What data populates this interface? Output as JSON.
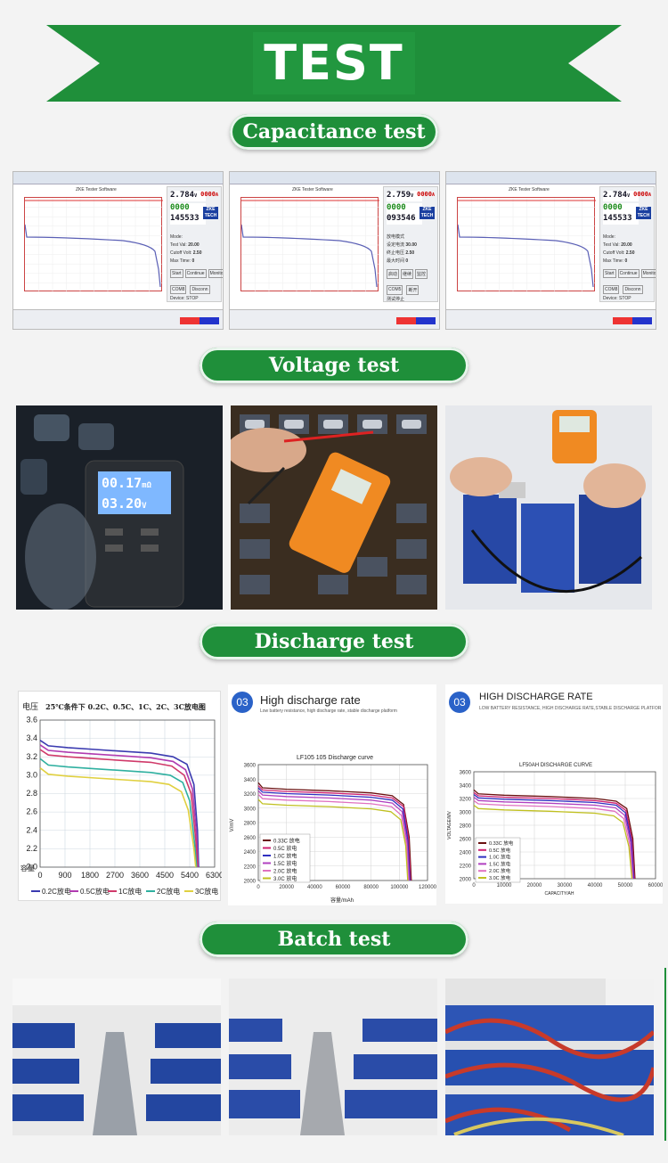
{
  "banner": {
    "title": "TEST",
    "color": "#1f8f3a"
  },
  "sections": {
    "capacitance": "Capacitance test",
    "voltage": "Voltage test",
    "discharge": "Discharge test",
    "batch": "Batch test"
  },
  "software_panels": [
    {
      "title": "ZKE Tester Software",
      "voltage": "2.784",
      "volt_unit": "V",
      "current": "0000",
      "cur_unit": "A",
      "capacity": "0000",
      "time": "145533",
      "mode_label": "Mode:",
      "test_val_label": "Test Val:",
      "test_val": "20.00",
      "cutoff_label": "Cutoff Volt:",
      "cutoff": "2.50",
      "maxtime_label": "Max Time:",
      "maxtime": "0",
      "start": "Start",
      "continue": "Continue",
      "monitor": "Monitor",
      "port": "COM8",
      "disconn": "Disconn",
      "status": "Device: STOP",
      "logo": "ZKE TECH"
    },
    {
      "title": "ZKE Tester Software",
      "voltage": "2.759",
      "volt_unit": "V",
      "current": "0000",
      "cur_unit": "A",
      "capacity": "0000",
      "time": "093546",
      "mode_label": "放电模式",
      "test_val_label": "设定电流",
      "test_val": "30.00",
      "cutoff_label": "终止电压",
      "cutoff": "2.50",
      "maxtime_label": "最大时间",
      "maxtime": "0",
      "start": "启动",
      "continue": "继续",
      "monitor": "监控",
      "port": "COM5",
      "disconn": "断开",
      "status": "测试停止",
      "logo": "ZKE TECH"
    },
    {
      "title": "ZKE Tester Software",
      "voltage": "2.784",
      "volt_unit": "V",
      "current": "0000",
      "cur_unit": "A",
      "capacity": "0000",
      "time": "145533",
      "mode_label": "Mode:",
      "test_val_label": "Test Val:",
      "test_val": "20.00",
      "cutoff_label": "Cutoff Volt:",
      "cutoff": "2.50",
      "maxtime_label": "Max Time:",
      "maxtime": "0",
      "start": "Start",
      "continue": "Continue",
      "monitor": "Monitor",
      "port": "COM8",
      "disconn": "Disconn",
      "status": "Device: STOP",
      "logo": "ZKE TECH"
    }
  ],
  "voltage_photos": {
    "meter1_line1": "00.17",
    "meter1_unit1": "mΩ",
    "meter1_line2": "03.20",
    "meter1_unit2": "V"
  },
  "discharge_cards": {
    "card2_badge": "03",
    "card2_title": "High discharge rate",
    "card2_subtitle": "Low battery resistance, high discharge rate, stable discharge platform",
    "card3_badge": "03",
    "card3_title": "HIGH DISCHARGE RATE",
    "card3_subtitle": "LOW BATTERY RESISTANCE, HIGH DISCHARGE RATE,STABLE DISCHARGE PLATFORM"
  },
  "chart_data": [
    {
      "type": "line",
      "title": "25℃条件下 0.2C、0.5C、1C、2C、3C放电图",
      "ylabel": "电压",
      "xlabel": "容量",
      "x_ticks": [
        "0",
        "900",
        "1800",
        "2700",
        "3600",
        "4500",
        "5400",
        "6300"
      ],
      "y_ticks": [
        "2.0",
        "2.2",
        "2.4",
        "2.6",
        "2.8",
        "3.0",
        "3.2",
        "3.4",
        "3.6"
      ],
      "xlim": [
        0,
        6300
      ],
      "ylim": [
        2.0,
        3.6
      ],
      "series": [
        {
          "name": "0.2C放电",
          "color": "#3b3bb0",
          "x": [
            0,
            300,
            1000,
            2000,
            3000,
            4000,
            4800,
            5300,
            5550,
            5680,
            5720
          ],
          "y": [
            3.38,
            3.32,
            3.3,
            3.28,
            3.26,
            3.24,
            3.2,
            3.12,
            2.9,
            2.4,
            2.0
          ]
        },
        {
          "name": "0.5C放电",
          "color": "#b03bb0",
          "x": [
            0,
            300,
            1000,
            2000,
            3000,
            4000,
            4800,
            5250,
            5500,
            5650,
            5700
          ],
          "y": [
            3.33,
            3.27,
            3.25,
            3.23,
            3.21,
            3.19,
            3.15,
            3.06,
            2.85,
            2.35,
            2.0
          ]
        },
        {
          "name": "1C放电",
          "color": "#d03a6a",
          "x": [
            0,
            300,
            1000,
            2000,
            3000,
            4000,
            4750,
            5200,
            5450,
            5620,
            5680
          ],
          "y": [
            3.28,
            3.22,
            3.2,
            3.18,
            3.16,
            3.14,
            3.1,
            3.0,
            2.8,
            2.3,
            2.0
          ]
        },
        {
          "name": "2C放电",
          "color": "#2fb0a0",
          "x": [
            0,
            300,
            1000,
            2000,
            3000,
            4000,
            4700,
            5150,
            5400,
            5580,
            5650
          ],
          "y": [
            3.18,
            3.11,
            3.09,
            3.07,
            3.05,
            3.03,
            3.0,
            2.92,
            2.72,
            2.25,
            2.0
          ]
        },
        {
          "name": "3C放电",
          "color": "#e0d040",
          "x": [
            0,
            300,
            1000,
            2000,
            3000,
            4000,
            4650,
            5100,
            5350,
            5550,
            5620
          ],
          "y": [
            3.08,
            3.01,
            2.99,
            2.97,
            2.95,
            2.93,
            2.9,
            2.82,
            2.62,
            2.2,
            2.0
          ]
        }
      ]
    },
    {
      "type": "line",
      "title": "LF105 105 Discharge curve",
      "ylabel": "V/mV",
      "xlabel": "容量/mAh",
      "x_ticks": [
        "0",
        "20000",
        "40000",
        "60000",
        "80000",
        "100000",
        "120000"
      ],
      "y_ticks": [
        "2000",
        "2200",
        "2400",
        "2600",
        "2800",
        "3000",
        "3200",
        "3400",
        "3600"
      ],
      "xlim": [
        0,
        120000
      ],
      "ylim": [
        2000,
        3600
      ],
      "series": [
        {
          "name": "0.33C 放电",
          "color": "#6a1010",
          "x": [
            0,
            3000,
            20000,
            50000,
            80000,
            95000,
            103000,
            107000,
            108500
          ],
          "y": [
            3350,
            3280,
            3260,
            3240,
            3210,
            3170,
            3050,
            2600,
            2000
          ]
        },
        {
          "name": "0.5C 放电",
          "color": "#d02070",
          "x": [
            0,
            3000,
            20000,
            50000,
            80000,
            95000,
            103000,
            106500,
            108000
          ],
          "y": [
            3310,
            3250,
            3230,
            3210,
            3180,
            3140,
            3020,
            2580,
            2000
          ]
        },
        {
          "name": "1.0C 放电",
          "color": "#3030c0",
          "x": [
            0,
            3000,
            20000,
            50000,
            80000,
            95000,
            102500,
            106000,
            107500
          ],
          "y": [
            3280,
            3220,
            3200,
            3180,
            3150,
            3110,
            2990,
            2560,
            2000
          ]
        },
        {
          "name": "1.5C 放电",
          "color": "#b040c0",
          "x": [
            0,
            3000,
            20000,
            50000,
            80000,
            95000,
            102000,
            105500,
            107000
          ],
          "y": [
            3240,
            3180,
            3160,
            3140,
            3110,
            3070,
            2950,
            2540,
            2000
          ]
        },
        {
          "name": "2.0C 放电",
          "color": "#e070c0",
          "x": [
            0,
            3000,
            20000,
            50000,
            80000,
            94500,
            101500,
            105000,
            106500
          ],
          "y": [
            3190,
            3130,
            3110,
            3090,
            3060,
            3020,
            2900,
            2510,
            2000
          ]
        },
        {
          "name": "3.0C 放电",
          "color": "#c0c020",
          "x": [
            0,
            3000,
            20000,
            50000,
            80000,
            94000,
            101000,
            104500,
            106000
          ],
          "y": [
            3120,
            3060,
            3040,
            3020,
            2990,
            2950,
            2840,
            2480,
            2000
          ]
        }
      ]
    },
    {
      "type": "line",
      "title": "LF50AH DISCHARGE CURVE",
      "ylabel": "VOLTAGE/MV",
      "xlabel": "CAPACITY/AH",
      "x_ticks": [
        "0",
        "10000",
        "20000",
        "30000",
        "40000",
        "50000",
        "60000"
      ],
      "y_ticks": [
        "2000",
        "2200",
        "2400",
        "2600",
        "2800",
        "3000",
        "3200",
        "3400",
        "3600"
      ],
      "xlim": [
        0,
        60000
      ],
      "ylim": [
        2000,
        3600
      ],
      "series": [
        {
          "name": "0.33C 放电",
          "color": "#6a1010",
          "x": [
            0,
            1500,
            10000,
            25000,
            40000,
            47000,
            50500,
            52500,
            53200
          ],
          "y": [
            3330,
            3270,
            3250,
            3230,
            3200,
            3160,
            3050,
            2600,
            2000
          ]
        },
        {
          "name": "0.5C 放电",
          "color": "#d02070",
          "x": [
            0,
            1500,
            10000,
            25000,
            40000,
            47000,
            50200,
            52200,
            53000
          ],
          "y": [
            3290,
            3240,
            3220,
            3200,
            3170,
            3130,
            3020,
            2580,
            2000
          ]
        },
        {
          "name": "1.0C 放电",
          "color": "#3030c0",
          "x": [
            0,
            1500,
            10000,
            25000,
            40000,
            47000,
            50000,
            52000,
            52800
          ],
          "y": [
            3260,
            3210,
            3190,
            3170,
            3140,
            3100,
            2990,
            2560,
            2000
          ]
        },
        {
          "name": "1.5C 放电",
          "color": "#b040c0",
          "x": [
            0,
            1500,
            10000,
            25000,
            40000,
            46800,
            49800,
            51800,
            52600
          ],
          "y": [
            3220,
            3170,
            3150,
            3130,
            3100,
            3060,
            2950,
            2540,
            2000
          ]
        },
        {
          "name": "2.0C 放电",
          "color": "#e070c0",
          "x": [
            0,
            1500,
            10000,
            25000,
            40000,
            46500,
            49500,
            51500,
            52400
          ],
          "y": [
            3170,
            3120,
            3100,
            3080,
            3050,
            3010,
            2900,
            2510,
            2000
          ]
        },
        {
          "name": "3.0C 放电",
          "color": "#c0c020",
          "x": [
            0,
            1500,
            10000,
            25000,
            40000,
            46200,
            49200,
            51200,
            52200
          ],
          "y": [
            3100,
            3050,
            3030,
            3010,
            2980,
            2940,
            2840,
            2480,
            2000
          ]
        }
      ]
    }
  ]
}
